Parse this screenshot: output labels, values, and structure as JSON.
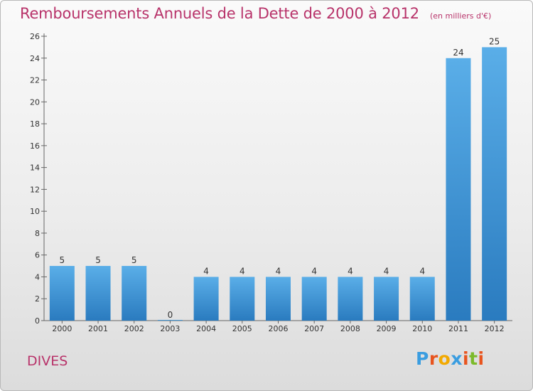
{
  "header": {
    "title": "Remboursements Annuels de la Dette de 2000 à 2012",
    "subtitle": "(en milliers d'€)"
  },
  "footer": {
    "city": "DIVES",
    "logo_letters": [
      "P",
      "r",
      "o",
      "x",
      "i",
      "t",
      "i"
    ],
    "logo_colors": [
      "#3a9de0",
      "#e8541e",
      "#f2a900",
      "#3a9de0",
      "#e8541e",
      "#7cba2a",
      "#e8541e"
    ]
  },
  "chart_data": {
    "type": "bar",
    "title": "Remboursements Annuels de la Dette de 2000 à 2012",
    "subtitle": "(en milliers d'€)",
    "categories": [
      "2000",
      "2001",
      "2002",
      "2003",
      "2004",
      "2005",
      "2006",
      "2007",
      "2008",
      "2009",
      "2010",
      "2011",
      "2012"
    ],
    "values": [
      5,
      5,
      5,
      0,
      4,
      4,
      4,
      4,
      4,
      4,
      4,
      24,
      25
    ],
    "ylim": [
      0,
      26
    ],
    "yticks": [
      0,
      2,
      4,
      6,
      8,
      10,
      12,
      14,
      16,
      18,
      20,
      22,
      24,
      26
    ],
    "xlabel": "",
    "ylabel": "",
    "grid": false,
    "bar_color_top": "#5aaee8",
    "bar_color_bottom": "#2a7bbf"
  }
}
